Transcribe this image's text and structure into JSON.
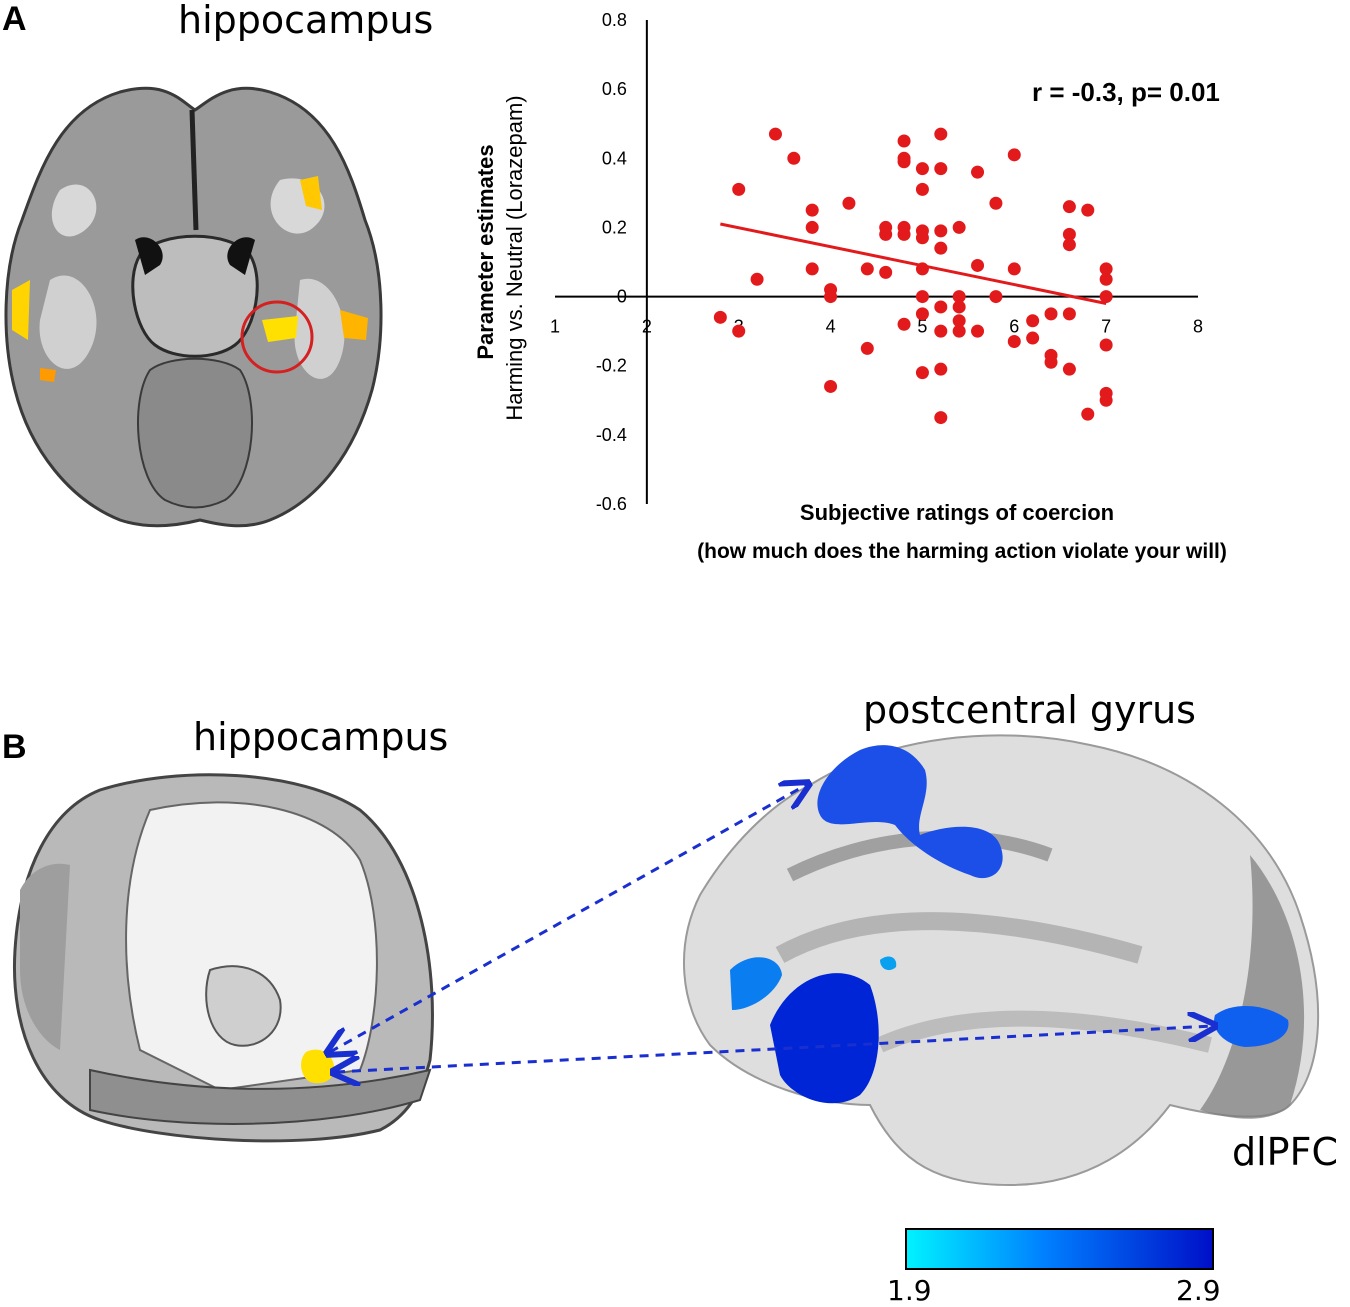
{
  "panels": {
    "a": {
      "letter": "A",
      "region_label": "hippocampus",
      "annotation": "r = -0.3, p= 0.01"
    },
    "b": {
      "letter": "B",
      "slice_label": "hippocampus",
      "surface_label_top": "postcentral gyrus",
      "surface_label_right": "dlPFC",
      "colorbar": {
        "min_label": "1.9",
        "max_label": "2.9",
        "colors": [
          "#00f2ff",
          "#0010c8"
        ]
      }
    }
  },
  "chart_data": {
    "type": "scatter",
    "title": "",
    "ylabel": "Parameter estimates",
    "ylabel_sub": "Harming vs. Neutral (Lorazepam)",
    "xlabel": "Subjective ratings of coercion",
    "xlabel_sub": "(how much does the harming action violate your will)",
    "xlim": [
      1,
      8
    ],
    "ylim": [
      -0.6,
      0.8
    ],
    "xticks": [
      "1",
      "2",
      "3",
      "4",
      "5",
      "6",
      "7",
      "8"
    ],
    "yticks": [
      "-0.6",
      "-0.4",
      "-0.2",
      "0",
      "0.2",
      "0.4",
      "0.6",
      "0.8"
    ],
    "grid": false,
    "point_color": "#e31a1c",
    "trendline": {
      "x": [
        2.8,
        7.0
      ],
      "y": [
        0.21,
        -0.02
      ],
      "color": "#e31a1c"
    },
    "points": [
      [
        2.8,
        -0.06
      ],
      [
        3.0,
        -0.1
      ],
      [
        3.0,
        0.31
      ],
      [
        3.2,
        0.05
      ],
      [
        3.4,
        0.47
      ],
      [
        3.6,
        0.4
      ],
      [
        3.8,
        0.25
      ],
      [
        3.8,
        0.2
      ],
      [
        3.8,
        0.08
      ],
      [
        4.0,
        0.02
      ],
      [
        4.0,
        0.0
      ],
      [
        4.0,
        -0.26
      ],
      [
        4.2,
        0.27
      ],
      [
        4.4,
        0.08
      ],
      [
        4.4,
        -0.15
      ],
      [
        4.6,
        0.2
      ],
      [
        4.6,
        0.18
      ],
      [
        4.6,
        0.07
      ],
      [
        4.8,
        0.45
      ],
      [
        4.8,
        0.4
      ],
      [
        4.8,
        0.39
      ],
      [
        4.8,
        0.2
      ],
      [
        4.8,
        0.18
      ],
      [
        4.8,
        -0.08
      ],
      [
        5.0,
        0.37
      ],
      [
        5.0,
        0.31
      ],
      [
        5.0,
        0.19
      ],
      [
        5.0,
        0.17
      ],
      [
        5.0,
        0.08
      ],
      [
        5.0,
        0.0
      ],
      [
        5.0,
        -0.05
      ],
      [
        5.0,
        -0.22
      ],
      [
        5.2,
        0.47
      ],
      [
        5.2,
        0.37
      ],
      [
        5.2,
        0.19
      ],
      [
        5.2,
        0.14
      ],
      [
        5.2,
        -0.03
      ],
      [
        5.2,
        -0.1
      ],
      [
        5.2,
        -0.21
      ],
      [
        5.2,
        -0.35
      ],
      [
        5.4,
        0.2
      ],
      [
        5.4,
        0.0
      ],
      [
        5.4,
        -0.03
      ],
      [
        5.4,
        -0.07
      ],
      [
        5.4,
        -0.1
      ],
      [
        5.6,
        0.36
      ],
      [
        5.6,
        0.09
      ],
      [
        5.6,
        -0.1
      ],
      [
        5.8,
        0.27
      ],
      [
        5.8,
        0.0
      ],
      [
        6.0,
        0.41
      ],
      [
        6.0,
        0.08
      ],
      [
        6.0,
        -0.13
      ],
      [
        6.2,
        -0.07
      ],
      [
        6.2,
        -0.12
      ],
      [
        6.4,
        -0.05
      ],
      [
        6.4,
        -0.17
      ],
      [
        6.4,
        -0.19
      ],
      [
        6.6,
        0.26
      ],
      [
        6.6,
        0.18
      ],
      [
        6.6,
        0.15
      ],
      [
        6.6,
        -0.05
      ],
      [
        6.6,
        -0.21
      ],
      [
        6.8,
        0.25
      ],
      [
        6.8,
        -0.34
      ],
      [
        7.0,
        0.08
      ],
      [
        7.0,
        0.05
      ],
      [
        7.0,
        0.0
      ],
      [
        7.0,
        -0.14
      ],
      [
        7.0,
        -0.28
      ],
      [
        7.0,
        -0.3
      ]
    ]
  }
}
